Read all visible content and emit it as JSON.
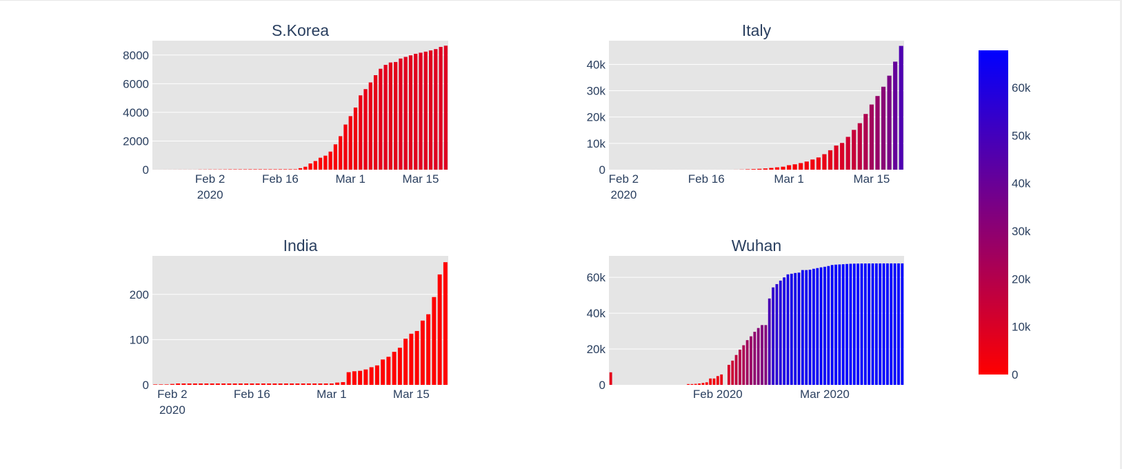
{
  "colorscale": {
    "low": "#ff0000",
    "high": "#0000ff"
  },
  "chart_data": [
    {
      "type": "bar",
      "title": "S.Korea",
      "x_start": "2020-01-22",
      "values": [
        1,
        1,
        2,
        2,
        3,
        4,
        4,
        4,
        4,
        11,
        12,
        15,
        15,
        16,
        19,
        23,
        24,
        24,
        25,
        27,
        28,
        28,
        28,
        28,
        28,
        29,
        30,
        31,
        31,
        104,
        204,
        433,
        602,
        833,
        977,
        1261,
        1766,
        2337,
        3150,
        3736,
        4335,
        5186,
        5621,
        6088,
        6593,
        7041,
        7313,
        7478,
        7513,
        7755,
        7869,
        7979,
        8086,
        8162,
        8236,
        8320,
        8413,
        8565,
        8652
      ],
      "ylim": [
        0,
        9000
      ],
      "y_ticks": [
        {
          "v": 0,
          "label": "0"
        },
        {
          "v": 2000,
          "label": "2000"
        },
        {
          "v": 4000,
          "label": "4000"
        },
        {
          "v": 6000,
          "label": "6000"
        },
        {
          "v": 8000,
          "label": "8000"
        }
      ],
      "x_ticks": [
        {
          "date": "2020-02-02",
          "label": "Feb 2",
          "label2": "2020"
        },
        {
          "date": "2020-02-16",
          "label": "Feb 16"
        },
        {
          "date": "2020-03-01",
          "label": "Mar 1"
        },
        {
          "date": "2020-03-15",
          "label": "Mar 15"
        }
      ]
    },
    {
      "type": "bar",
      "title": "Italy",
      "x_start": "2020-01-31",
      "values": [
        2,
        2,
        2,
        2,
        2,
        2,
        2,
        3,
        3,
        3,
        3,
        3,
        3,
        3,
        3,
        3,
        3,
        3,
        3,
        3,
        3,
        20,
        62,
        155,
        229,
        322,
        453,
        655,
        888,
        1128,
        1694,
        2036,
        2502,
        3089,
        3858,
        4636,
        5883,
        7375,
        9172,
        10149,
        12462,
        15113,
        17660,
        21157,
        24747,
        27980,
        31506,
        35713,
        41035,
        47021
      ],
      "ylim": [
        0,
        49000
      ],
      "y_ticks": [
        {
          "v": 0,
          "label": "0"
        },
        {
          "v": 10000,
          "label": "10k"
        },
        {
          "v": 20000,
          "label": "20k"
        },
        {
          "v": 30000,
          "label": "30k"
        },
        {
          "v": 40000,
          "label": "40k"
        }
      ],
      "x_ticks": [
        {
          "date": "2020-02-02",
          "label": "Feb 2",
          "label2": "2020"
        },
        {
          "date": "2020-02-16",
          "label": "Feb 16"
        },
        {
          "date": "2020-03-01",
          "label": "Mar 1"
        },
        {
          "date": "2020-03-15",
          "label": "Mar 15"
        }
      ]
    },
    {
      "type": "bar",
      "title": "India",
      "x_start": "2020-01-30",
      "values": [
        1,
        1,
        1,
        2,
        3,
        3,
        3,
        3,
        3,
        3,
        3,
        3,
        3,
        3,
        3,
        3,
        3,
        3,
        3,
        3,
        3,
        3,
        3,
        3,
        3,
        3,
        3,
        3,
        3,
        3,
        3,
        3,
        5,
        6,
        28,
        30,
        31,
        34,
        39,
        43,
        56,
        62,
        73,
        82,
        102,
        113,
        119,
        142,
        156,
        194,
        244,
        271
      ],
      "ylim": [
        0,
        285
      ],
      "y_ticks": [
        {
          "v": 0,
          "label": "0"
        },
        {
          "v": 100,
          "label": "100"
        },
        {
          "v": 200,
          "label": "200"
        }
      ],
      "x_ticks": [
        {
          "date": "2020-02-02",
          "label": "Feb 2",
          "label2": "2020"
        },
        {
          "date": "2020-02-16",
          "label": "Feb 16"
        },
        {
          "date": "2020-03-01",
          "label": "Mar 1"
        },
        {
          "date": "2020-03-15",
          "label": "Mar 15"
        }
      ]
    },
    {
      "type": "bar",
      "title": "Wuhan",
      "x_start": "2020-01-03",
      "values": [
        7000,
        0,
        0,
        0,
        0,
        0,
        0,
        0,
        0,
        0,
        0,
        0,
        0,
        0,
        0,
        0,
        0,
        0,
        0,
        0,
        0,
        444,
        444,
        549,
        761,
        1058,
        1423,
        3554,
        3554,
        4903,
        5806,
        0,
        11177,
        13522,
        16678,
        19665,
        22112,
        24953,
        27100,
        29631,
        31728,
        33366,
        33366,
        48206,
        54406,
        56249,
        58182,
        59989,
        61682,
        62031,
        62442,
        62662,
        64084,
        64084,
        64287,
        64786,
        65187,
        65596,
        65914,
        66337,
        66907,
        67103,
        67217,
        67332,
        67466,
        67592,
        67666,
        67707,
        67743,
        67760,
        67773,
        67781,
        67786,
        67790,
        67794,
        67798,
        67799,
        67800,
        67800,
        67800
      ],
      "ylim": [
        0,
        72000
      ],
      "y_ticks": [
        {
          "v": 0,
          "label": "0"
        },
        {
          "v": 20000,
          "label": "20k"
        },
        {
          "v": 40000,
          "label": "40k"
        },
        {
          "v": 60000,
          "label": "60k"
        }
      ],
      "x_ticks": [
        {
          "date": "2020-02-01",
          "label": "Feb 2020"
        },
        {
          "date": "2020-03-01",
          "label": "Mar 2020"
        }
      ]
    }
  ],
  "colorbar": {
    "min": 0,
    "max": 67800,
    "ticks": [
      {
        "v": 0,
        "label": "0"
      },
      {
        "v": 10000,
        "label": "10k"
      },
      {
        "v": 20000,
        "label": "20k"
      },
      {
        "v": 30000,
        "label": "30k"
      },
      {
        "v": 40000,
        "label": "40k"
      },
      {
        "v": 50000,
        "label": "50k"
      },
      {
        "v": 60000,
        "label": "60k"
      }
    ]
  }
}
